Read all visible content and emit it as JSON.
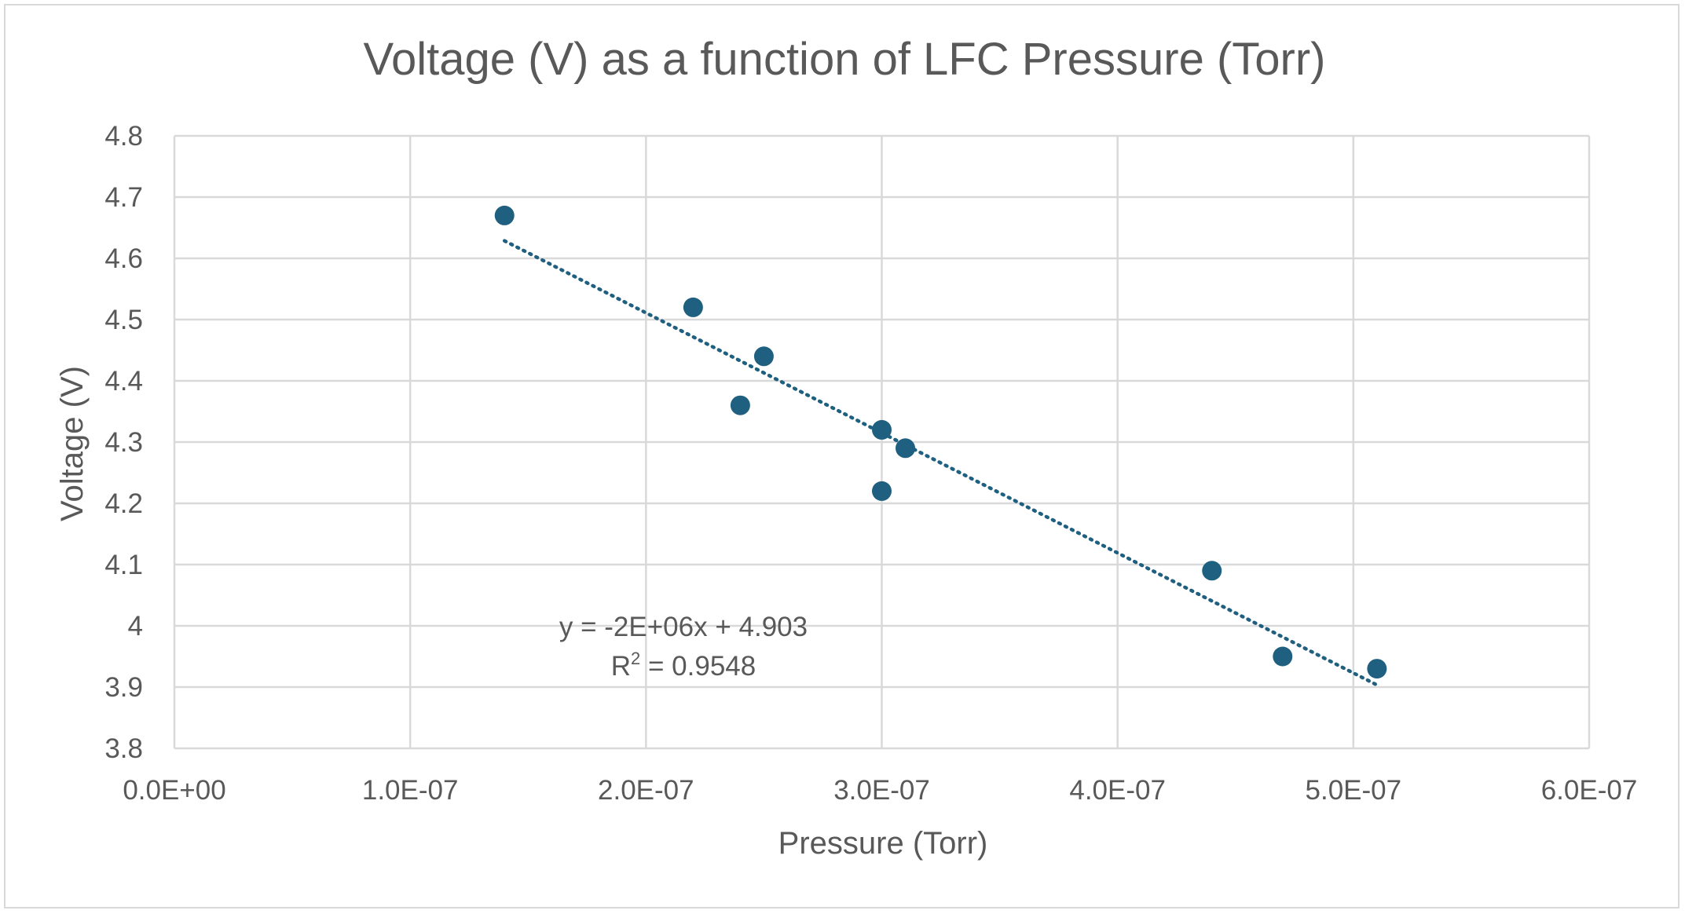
{
  "chart_data": {
    "type": "scatter",
    "title": "Voltage (V) as a function of LFC Pressure (Torr)",
    "xlabel": "Pressure (Torr)",
    "ylabel": "Voltage (V)",
    "xlim": [
      0,
      6e-07
    ],
    "ylim": [
      3.8,
      4.8
    ],
    "x_ticks": [
      0,
      1e-07,
      2e-07,
      3e-07,
      4e-07,
      5e-07,
      6e-07
    ],
    "x_tick_labels": [
      "0.0E+00",
      "1.0E-07",
      "2.0E-07",
      "3.0E-07",
      "4.0E-07",
      "5.0E-07",
      "6.0E-07"
    ],
    "y_ticks": [
      3.8,
      3.9,
      4.0,
      4.1,
      4.2,
      4.3,
      4.4,
      4.5,
      4.6,
      4.7,
      4.8
    ],
    "y_tick_labels": [
      "3.8",
      "3.9",
      "4",
      "4.1",
      "4.2",
      "4.3",
      "4.4",
      "4.5",
      "4.6",
      "4.7",
      "4.8"
    ],
    "grid": true,
    "legend": "none",
    "series": [
      {
        "color": "#1f5f80",
        "points": [
          {
            "x": 1.4e-07,
            "y": 4.67
          },
          {
            "x": 2.2e-07,
            "y": 4.52
          },
          {
            "x": 2.5e-07,
            "y": 4.44
          },
          {
            "x": 2.4e-07,
            "y": 4.36
          },
          {
            "x": 3e-07,
            "y": 4.32
          },
          {
            "x": 3.1e-07,
            "y": 4.29
          },
          {
            "x": 3e-07,
            "y": 4.22
          },
          {
            "x": 4.4e-07,
            "y": 4.09
          },
          {
            "x": 4.7e-07,
            "y": 3.95
          },
          {
            "x": 5.1e-07,
            "y": 3.93
          }
        ]
      }
    ],
    "trendline": {
      "type": "linear",
      "style": "dotted",
      "color": "#1f5f80",
      "x_range": [
        1.4e-07,
        5.1e-07
      ],
      "slope": -1960000,
      "intercept": 4.903,
      "equation_label": "y = -2E+06x + 4.903",
      "r2_prefix": "R",
      "r2_exponent": "2",
      "r2_value": " = 0.9548"
    }
  }
}
